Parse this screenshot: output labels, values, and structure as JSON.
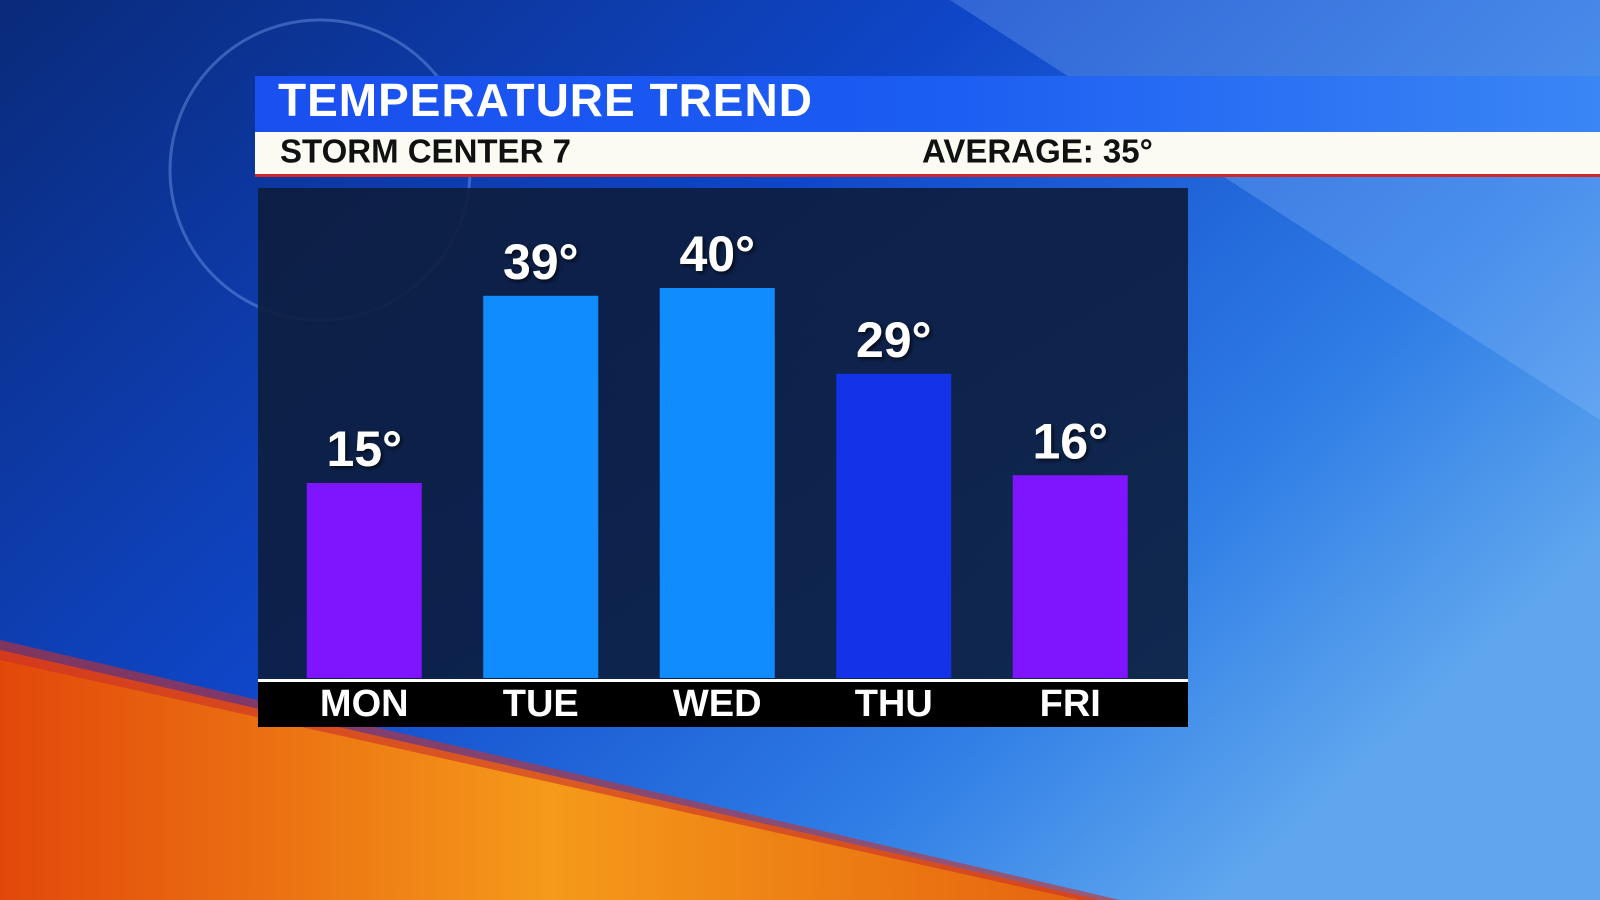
{
  "chart_data": {
    "type": "bar",
    "title": "TEMPERATURE TREND",
    "subtitle": "STORM CENTER 7",
    "annotation": "AVERAGE: 35°",
    "categories": [
      "MON",
      "TUE",
      "WED",
      "THU",
      "FRI"
    ],
    "values": [
      15,
      39,
      40,
      29,
      16
    ],
    "value_labels": [
      "15°",
      "39°",
      "40°",
      "29°",
      "16°"
    ],
    "colors": [
      "#7f14ff",
      "#118cff",
      "#118cff",
      "#1432e8",
      "#7f14ff"
    ],
    "ylim": [
      -10,
      50
    ]
  }
}
